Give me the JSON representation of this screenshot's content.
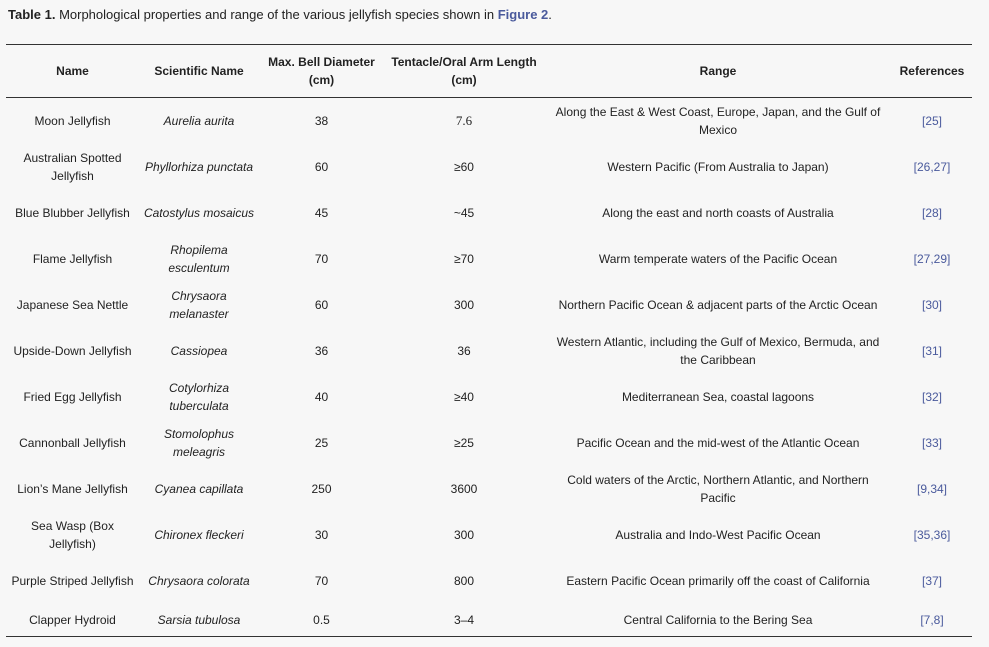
{
  "caption": {
    "label": "Table 1.",
    "text": " Morphological properties and range of the various jellyfish species shown in ",
    "figure_link": "Figure 2",
    "end": "."
  },
  "headers": [
    "Name",
    "Scientific Name",
    "Max. Bell Diameter (cm)",
    "Tentacle/Oral Arm Length (cm)",
    "Range",
    "References"
  ],
  "rows": [
    {
      "name": "Moon Jellyfish",
      "scientific": "Aurelia aurita",
      "bell": "38",
      "tentacle": "7.6",
      "range": "Along the East & West Coast, Europe, Japan, and the Gulf of Mexico",
      "refs": "[25]"
    },
    {
      "name": "Australian Spotted Jellyfish",
      "scientific": "Phyllorhiza punctata",
      "bell": "60",
      "tentacle": "≥60",
      "range": "Western Pacific (From Australia to Japan)",
      "refs": "[26,27]"
    },
    {
      "name": "Blue Blubber Jellyfish",
      "scientific": "Catostylus mosaicus",
      "bell": "45",
      "tentacle": "~45",
      "range": "Along the east and north coasts of Australia",
      "refs": "[28]"
    },
    {
      "name": "Flame Jellyfish",
      "scientific": "Rhopilema esculentum",
      "bell": "70",
      "tentacle": "≥70",
      "range": "Warm temperate waters of the Pacific Ocean",
      "refs": "[27,29]"
    },
    {
      "name": "Japanese Sea Nettle",
      "scientific": "Chrysaora melanaster",
      "bell": "60",
      "tentacle": "300",
      "range": "Northern Pacific Ocean & adjacent parts of the Arctic Ocean",
      "refs": "[30]"
    },
    {
      "name": "Upside-Down Jellyfish",
      "scientific": "Cassiopea",
      "bell": "36",
      "tentacle": "36",
      "range": "Western Atlantic, including the Gulf of Mexico, Bermuda, and the Caribbean",
      "refs": "[31]"
    },
    {
      "name": "Fried Egg Jellyfish",
      "scientific": "Cotylorhiza tuberculata",
      "bell": "40",
      "tentacle": "≥40",
      "range": "Mediterranean Sea, coastal lagoons",
      "refs": "[32]"
    },
    {
      "name": "Cannonball Jellyfish",
      "scientific": "Stomolophus meleagris",
      "bell": "25",
      "tentacle": "≥25",
      "range": "Pacific Ocean and the mid-west of the Atlantic Ocean",
      "refs": "[33]"
    },
    {
      "name": "Lion’s Mane Jellyfish",
      "scientific": "Cyanea capillata",
      "bell": "250",
      "tentacle": "3600",
      "range": "Cold waters of the Arctic, Northern Atlantic, and Northern Pacific",
      "refs": "[9,34]"
    },
    {
      "name": "Sea Wasp (Box Jellyfish)",
      "scientific": "Chironex fleckeri",
      "bell": "30",
      "tentacle": "300",
      "range": "Australia and Indo-West Pacific Ocean",
      "refs": "[35,36]"
    },
    {
      "name": "Purple Striped Jellyfish",
      "scientific": "Chrysaora colorata",
      "bell": "70",
      "tentacle": "800",
      "range": "Eastern Pacific Ocean primarily off the coast of California",
      "refs": "[37]"
    },
    {
      "name": "Clapper Hydroid",
      "scientific": "Sarsia tubulosa",
      "bell": "0.5",
      "tentacle": "3–4",
      "range": "Central California to the Bering Sea",
      "refs": "[7,8]"
    }
  ]
}
